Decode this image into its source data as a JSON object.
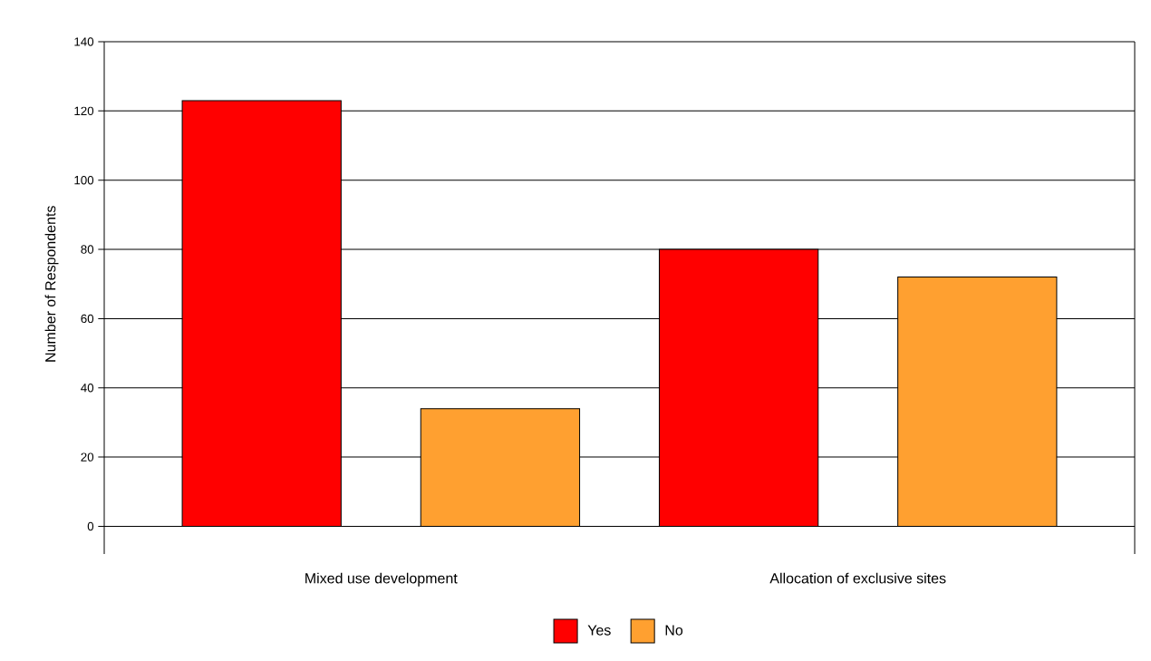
{
  "chart_data": {
    "type": "bar",
    "categories": [
      "Mixed use development",
      "Allocation of exclusive sites"
    ],
    "series": [
      {
        "name": "Yes",
        "color": "#ff0000",
        "values": [
          123,
          80
        ]
      },
      {
        "name": "No",
        "color": "#ffa030",
        "values": [
          34,
          72
        ]
      }
    ],
    "ylabel": "Number of Respondents",
    "ylim": [
      -8,
      140
    ],
    "yticks": [
      0,
      20,
      40,
      60,
      80,
      100,
      120,
      140
    ],
    "grid": "y",
    "legend": "bottom"
  }
}
